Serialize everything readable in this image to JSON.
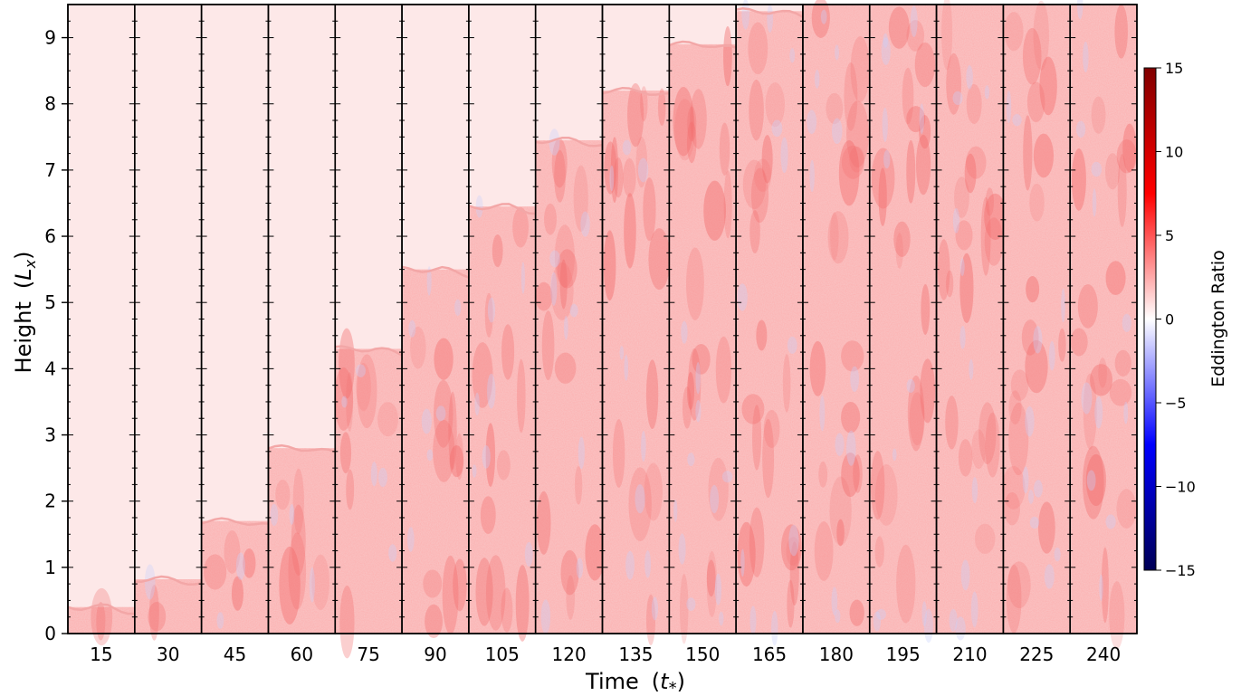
{
  "chart_data": {
    "type": "heatmap",
    "xlabel_main": "Time",
    "xlabel_unit": "t",
    "xlabel_unit_sub": "*",
    "ylabel_main": "Height",
    "ylabel_unit": "L",
    "ylabel_unit_sub": "x",
    "colorbar_label": "Eddington Ratio",
    "colormap": "seismic",
    "clim": [
      -15,
      15
    ],
    "colorbar_ticks": [
      "15",
      "10",
      "5",
      "0",
      "−5",
      "−10",
      "−15"
    ],
    "colorbar_tick_values": [
      15,
      10,
      5,
      0,
      -5,
      -10,
      -15
    ],
    "ylim": [
      0,
      9.5
    ],
    "y_ticks": [
      0,
      1,
      2,
      3,
      4,
      5,
      6,
      7,
      8,
      9
    ],
    "panels": [
      {
        "time": "15",
        "front_height": 0.4
      },
      {
        "time": "30",
        "front_height": 0.82
      },
      {
        "time": "45",
        "front_height": 1.7
      },
      {
        "time": "60",
        "front_height": 2.8
      },
      {
        "time": "75",
        "front_height": 4.3
      },
      {
        "time": "90",
        "front_height": 5.5
      },
      {
        "time": "105",
        "front_height": 6.45
      },
      {
        "time": "120",
        "front_height": 7.45
      },
      {
        "time": "135",
        "front_height": 8.2
      },
      {
        "time": "150",
        "front_height": 8.9
      },
      {
        "time": "165",
        "front_height": 9.4
      },
      {
        "time": "180",
        "front_height": 9.6
      },
      {
        "time": "195",
        "front_height": 9.6
      },
      {
        "time": "210",
        "front_height": 9.6
      },
      {
        "time": "225",
        "front_height": 9.6
      },
      {
        "time": "240",
        "front_height": 9.6
      }
    ],
    "colors": {
      "background_ratio": "#fde8e8",
      "turbulent_high": "#f26a6a",
      "turbulent_mid": "#f8b4b4",
      "negative": "#c8d0fb",
      "front_line": "#f3a7a7"
    }
  }
}
